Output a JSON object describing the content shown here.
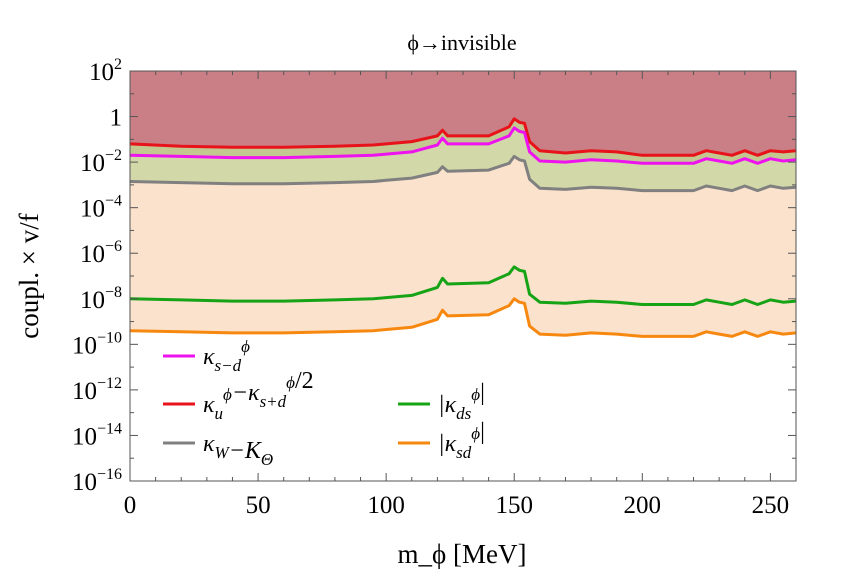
{
  "chart_data": {
    "type": "area",
    "title": "ϕ→invisible",
    "xlabel": "m_ϕ [MeV]",
    "ylabel": "coupl. × v/f",
    "xlim": [
      0,
      260
    ],
    "ylim_log10": [
      -16,
      2
    ],
    "y_scale": "log",
    "x_ticks": [
      "0",
      "50",
      "100",
      "150",
      "200",
      "250"
    ],
    "x_tick_values": [
      0,
      50,
      100,
      150,
      200,
      250
    ],
    "y_ticks": [
      "10^2",
      "1",
      "10^-2",
      "10^-4",
      "10^-6",
      "10^-8",
      "10^-10",
      "10^-12",
      "10^-14",
      "10^-16"
    ],
    "y_tick_exponents": [
      2,
      0,
      -2,
      -4,
      -6,
      -8,
      -10,
      -12,
      -14,
      -16
    ],
    "legend_position": "lower-left",
    "x": [
      0,
      20,
      40,
      60,
      80,
      95,
      100,
      110,
      120,
      122,
      124,
      140,
      148,
      150,
      152,
      154,
      156,
      160,
      170,
      180,
      190,
      200,
      210,
      220,
      225,
      230,
      235,
      240,
      245,
      250,
      255,
      260
    ],
    "series": [
      {
        "name": "κ_u^ϕ−κ_{s+d}^ϕ/2",
        "color": "#e8121a",
        "fill": "#c97f85",
        "log10_values": [
          -1.2,
          -1.3,
          -1.35,
          -1.35,
          -1.3,
          -1.25,
          -1.2,
          -1.1,
          -0.85,
          -0.6,
          -0.85,
          -0.85,
          -0.45,
          -0.1,
          -0.25,
          -0.3,
          -1.1,
          -1.5,
          -1.6,
          -1.5,
          -1.55,
          -1.7,
          -1.7,
          -1.7,
          -1.5,
          -1.6,
          -1.7,
          -1.5,
          -1.7,
          -1.5,
          -1.55,
          -1.5
        ]
      },
      {
        "name": "κ_{s−d}^ϕ",
        "color": "#ee12ee",
        "fill": "#c3c890",
        "log10_values": [
          -1.7,
          -1.75,
          -1.8,
          -1.8,
          -1.75,
          -1.7,
          -1.65,
          -1.55,
          -1.25,
          -0.95,
          -1.2,
          -1.2,
          -0.85,
          -0.5,
          -0.65,
          -0.7,
          -1.55,
          -1.95,
          -2.0,
          -1.9,
          -1.95,
          -2.05,
          -2.05,
          -2.05,
          -1.85,
          -1.95,
          -2.05,
          -1.85,
          -2.05,
          -1.85,
          -1.95,
          -1.9
        ]
      },
      {
        "name": "κ_W−K_Θ",
        "color": "#808080",
        "fill": "#d3d8a8",
        "log10_values": [
          -2.85,
          -2.9,
          -2.95,
          -2.95,
          -2.9,
          -2.85,
          -2.8,
          -2.7,
          -2.45,
          -2.2,
          -2.4,
          -2.35,
          -2.05,
          -1.75,
          -1.9,
          -1.95,
          -2.75,
          -3.15,
          -3.2,
          -3.1,
          -3.15,
          -3.25,
          -3.25,
          -3.25,
          -3.05,
          -3.15,
          -3.25,
          -3.05,
          -3.25,
          -3.05,
          -3.15,
          -3.1
        ]
      },
      {
        "name": "|κ_{ds}^ϕ|",
        "color": "#16a316",
        "fill": "#fbe2cc",
        "log10_values": [
          -8.0,
          -8.05,
          -8.1,
          -8.1,
          -8.05,
          -8.0,
          -7.95,
          -7.85,
          -7.5,
          -7.1,
          -7.35,
          -7.3,
          -6.9,
          -6.6,
          -6.75,
          -6.8,
          -7.8,
          -8.15,
          -8.2,
          -8.1,
          -8.15,
          -8.25,
          -8.25,
          -8.25,
          -8.05,
          -8.15,
          -8.25,
          -8.05,
          -8.25,
          -8.05,
          -8.15,
          -8.1
        ]
      },
      {
        "name": "|κ_{sd}^ϕ|",
        "color": "#f7880f",
        "fill": "none",
        "log10_values": [
          -9.4,
          -9.45,
          -9.5,
          -9.5,
          -9.45,
          -9.4,
          -9.35,
          -9.25,
          -8.9,
          -8.5,
          -8.75,
          -8.7,
          -8.3,
          -8.0,
          -8.15,
          -8.2,
          -9.2,
          -9.55,
          -9.6,
          -9.5,
          -9.55,
          -9.65,
          -9.65,
          -9.65,
          -9.45,
          -9.55,
          -9.65,
          -9.45,
          -9.65,
          -9.45,
          -9.55,
          -9.5
        ]
      }
    ]
  },
  "legend": {
    "items": [
      {
        "name": "κ_{s−d}^ϕ",
        "color": "#ee12ee"
      },
      {
        "name": "κ_u^ϕ−κ_{s+d}^ϕ/2",
        "color": "#e8121a"
      },
      {
        "name": "κ_W−K_Θ",
        "color": "#808080"
      },
      {
        "name": "|κ_{ds}^ϕ|",
        "color": "#16a316"
      },
      {
        "name": "|κ_{sd}^ϕ|",
        "color": "#f7880f"
      }
    ]
  },
  "colors": {
    "top_fill": "#c97f85",
    "frame": "#555555"
  }
}
